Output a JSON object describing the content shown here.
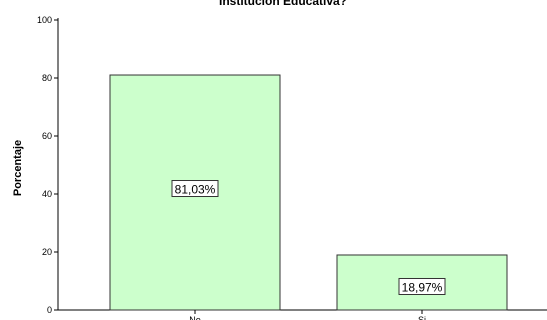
{
  "chart_data": {
    "type": "bar",
    "title": "Institución Educativa?",
    "xlabel": "",
    "ylabel": "Porcentaje",
    "categories": [
      "No",
      "Si"
    ],
    "values": [
      81.03,
      18.97
    ],
    "data_labels": [
      "81,03%",
      "18,97%"
    ],
    "ylim": [
      0,
      100
    ],
    "yticks": [
      0,
      20,
      40,
      60,
      80,
      100
    ],
    "grid": false,
    "legend": "none",
    "bar_color": "#ccffcc",
    "bar_border_color": "#333333"
  }
}
